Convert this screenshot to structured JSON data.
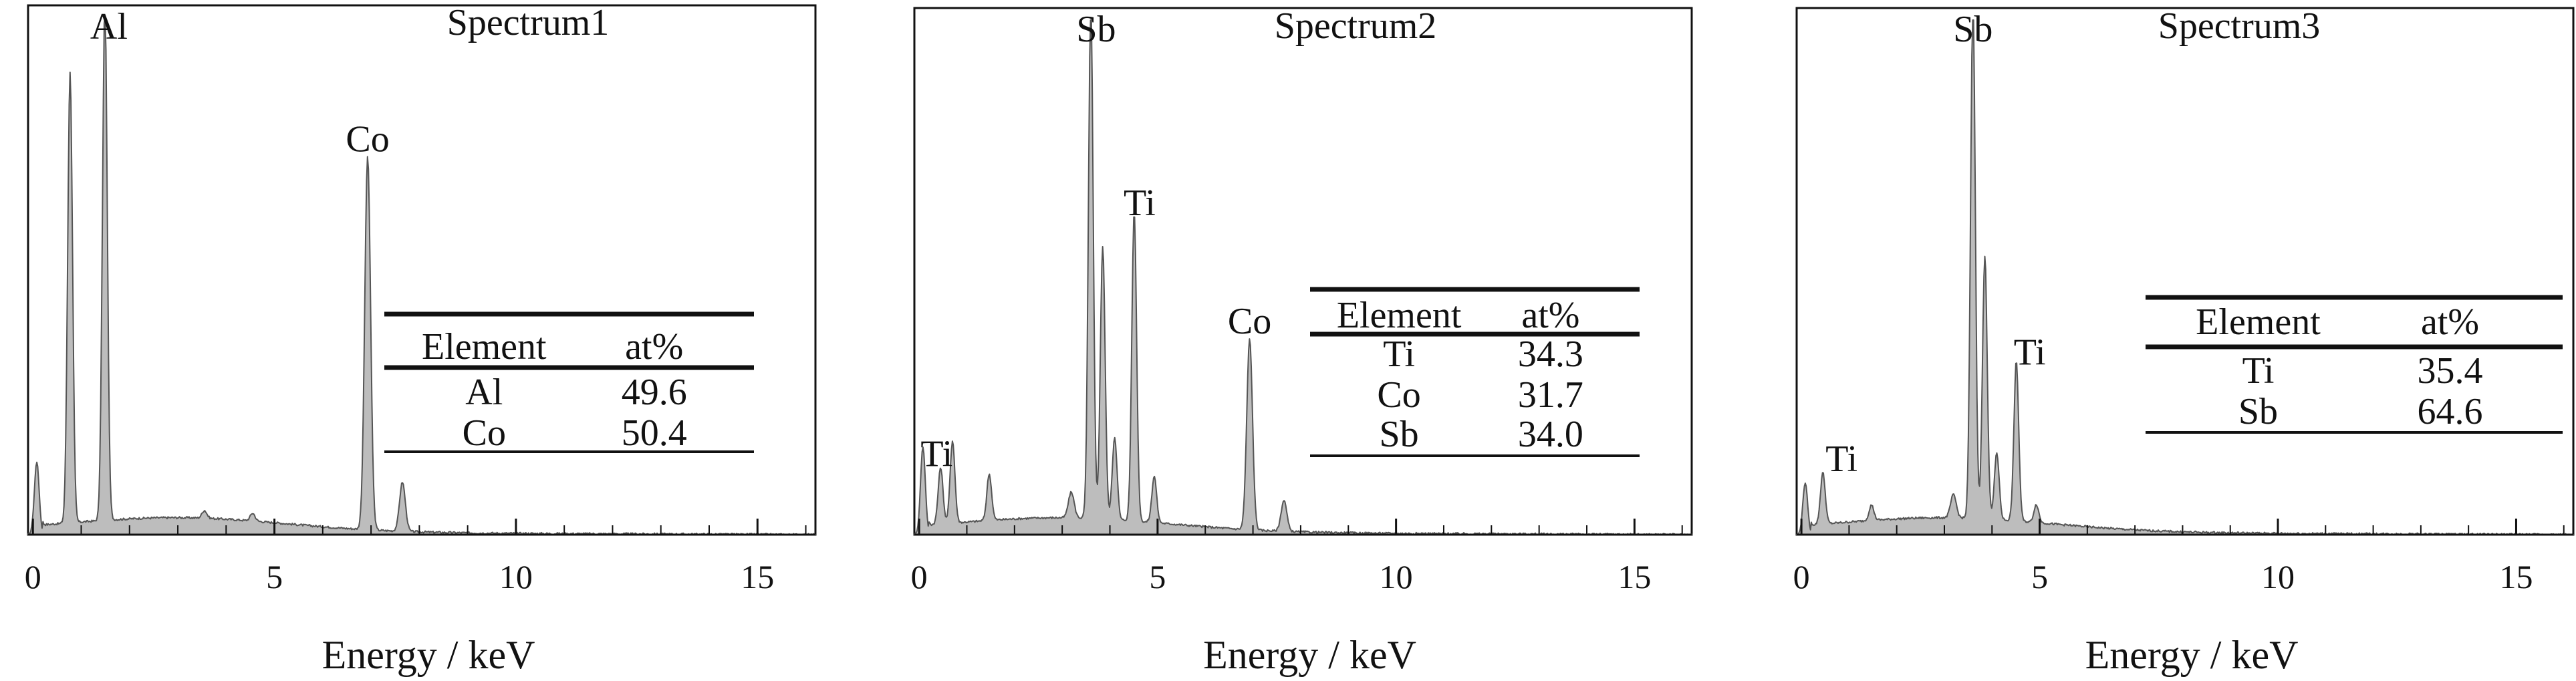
{
  "chart_data": [
    {
      "type": "area",
      "title": "Spectrum1",
      "xlabel": "Energy / keV",
      "ylabel": "",
      "xlim": [
        -0.1,
        16.2
      ],
      "ylim": [
        0,
        1.0
      ],
      "xticks": [
        0,
        5,
        10,
        15
      ],
      "xtick_labels": [
        "0",
        "5",
        "10",
        "15"
      ],
      "grid": false,
      "legend": "none",
      "peaks": [
        {
          "x": 0.08,
          "y": 0.14,
          "w": 0.05
        },
        {
          "x": 0.77,
          "y": 0.87,
          "w": 0.05
        },
        {
          "x": 1.49,
          "y": 1.0,
          "w": 0.05
        },
        {
          "x": 3.55,
          "y": 0.015,
          "w": 0.05
        },
        {
          "x": 4.55,
          "y": 0.015,
          "w": 0.05
        },
        {
          "x": 6.93,
          "y": 0.72,
          "w": 0.06
        },
        {
          "x": 7.65,
          "y": 0.095,
          "w": 0.06
        }
      ],
      "peak_labels": [
        {
          "text": "Al",
          "x": 1.49,
          "y": 1.0
        },
        {
          "text": "Co",
          "x": 6.93,
          "y": 0.72
        }
      ],
      "table": {
        "headers": [
          "Element",
          "at%"
        ],
        "rows": [
          [
            "Al",
            "49.6"
          ],
          [
            "Co",
            "50.4"
          ]
        ]
      }
    },
    {
      "type": "area",
      "title": "Spectrum2",
      "xlabel": "Energy / keV",
      "ylabel": "",
      "xlim": [
        -0.1,
        16.2
      ],
      "ylim": [
        0,
        1.0
      ],
      "xticks": [
        0,
        5,
        10,
        15
      ],
      "xtick_labels": [
        "0",
        "5",
        "10",
        "15"
      ],
      "grid": false,
      "legend": "none",
      "peaks": [
        {
          "x": 0.08,
          "y": 0.17,
          "w": 0.05
        },
        {
          "x": 0.45,
          "y": 0.11,
          "w": 0.05
        },
        {
          "x": 0.7,
          "y": 0.16,
          "w": 0.05
        },
        {
          "x": 1.47,
          "y": 0.09,
          "w": 0.05
        },
        {
          "x": 3.19,
          "y": 0.05,
          "w": 0.06
        },
        {
          "x": 3.6,
          "y": 1.0,
          "w": 0.05
        },
        {
          "x": 3.85,
          "y": 0.53,
          "w": 0.05
        },
        {
          "x": 4.1,
          "y": 0.16,
          "w": 0.05
        },
        {
          "x": 4.51,
          "y": 0.6,
          "w": 0.05
        },
        {
          "x": 4.93,
          "y": 0.09,
          "w": 0.05
        },
        {
          "x": 6.93,
          "y": 0.37,
          "w": 0.06
        },
        {
          "x": 7.65,
          "y": 0.06,
          "w": 0.06
        }
      ],
      "peak_labels": [
        {
          "text": "Sb",
          "x": 3.6,
          "y": 1.0
        },
        {
          "text": "Ti",
          "x": 4.51,
          "y": 0.6
        },
        {
          "text": "Co",
          "x": 6.93,
          "y": 0.37
        },
        {
          "text": "Ti",
          "x": 0.45,
          "y": 0.11
        }
      ],
      "table": {
        "headers": [
          "Element",
          "at%"
        ],
        "rows": [
          [
            "Ti",
            "34.3"
          ],
          [
            "Co",
            "31.7"
          ],
          [
            "Sb",
            "34.0"
          ]
        ]
      }
    },
    {
      "type": "area",
      "title": "Spectrum3",
      "xlabel": "Energy / keV",
      "ylabel": "",
      "xlim": [
        -0.1,
        16.2
      ],
      "ylim": [
        0,
        1.0
      ],
      "xticks": [
        0,
        5,
        10,
        15
      ],
      "xtick_labels": [
        "0",
        "5",
        "10",
        "15"
      ],
      "grid": false,
      "legend": "none",
      "peaks": [
        {
          "x": 0.08,
          "y": 0.1,
          "w": 0.05
        },
        {
          "x": 0.45,
          "y": 0.1,
          "w": 0.05
        },
        {
          "x": 1.47,
          "y": 0.03,
          "w": 0.05
        },
        {
          "x": 3.19,
          "y": 0.045,
          "w": 0.06
        },
        {
          "x": 3.6,
          "y": 1.0,
          "w": 0.05
        },
        {
          "x": 3.85,
          "y": 0.51,
          "w": 0.05
        },
        {
          "x": 4.1,
          "y": 0.13,
          "w": 0.05
        },
        {
          "x": 4.51,
          "y": 0.31,
          "w": 0.05
        },
        {
          "x": 4.93,
          "y": 0.035,
          "w": 0.05
        }
      ],
      "peak_labels": [
        {
          "text": "Sb",
          "x": 3.6,
          "y": 1.0
        },
        {
          "text": "Ti",
          "x": 4.51,
          "y": 0.31
        },
        {
          "text": "Ti",
          "x": 0.45,
          "y": 0.1
        }
      ],
      "table": {
        "headers": [
          "Element",
          "at%"
        ],
        "rows": [
          [
            "Ti",
            "35.4"
          ],
          [
            "Sb",
            "64.6"
          ]
        ]
      }
    }
  ]
}
